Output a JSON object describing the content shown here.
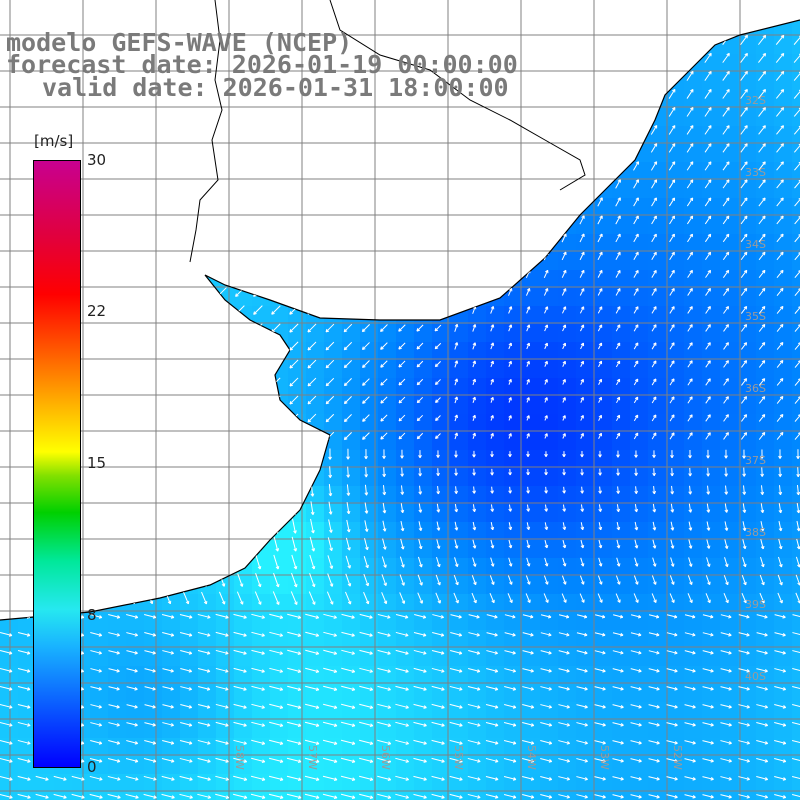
{
  "header": {
    "line1": "modelo GEFS-WAVE (NCEP)",
    "line2": "forecast date: 2026-01-19 00:00:00",
    "line3": "valid date: 2026-01-31 18:00:00"
  },
  "colorbar": {
    "unit": "[m/s]",
    "ticks": [
      "30",
      "22",
      "15",
      "8",
      "0"
    ],
    "min": 0,
    "max": 30,
    "colors": [
      "#0000ff",
      "#19b4ff",
      "#26e8f0",
      "#00d000",
      "#ffff00",
      "#ff6000",
      "#ff0000",
      "#c80090"
    ]
  },
  "map": {
    "land_color": "#ffffff",
    "coastline_color": "#000000",
    "grid_color": "#808080",
    "arrow_color": "#ffffff",
    "lat_labels": [
      "32S",
      "33S",
      "34S",
      "35S",
      "36S",
      "37S",
      "38S",
      "39S",
      "40S"
    ],
    "lon_labels": [
      "58W",
      "57W",
      "56W",
      "55W",
      "54W",
      "53W",
      "52W"
    ]
  }
}
